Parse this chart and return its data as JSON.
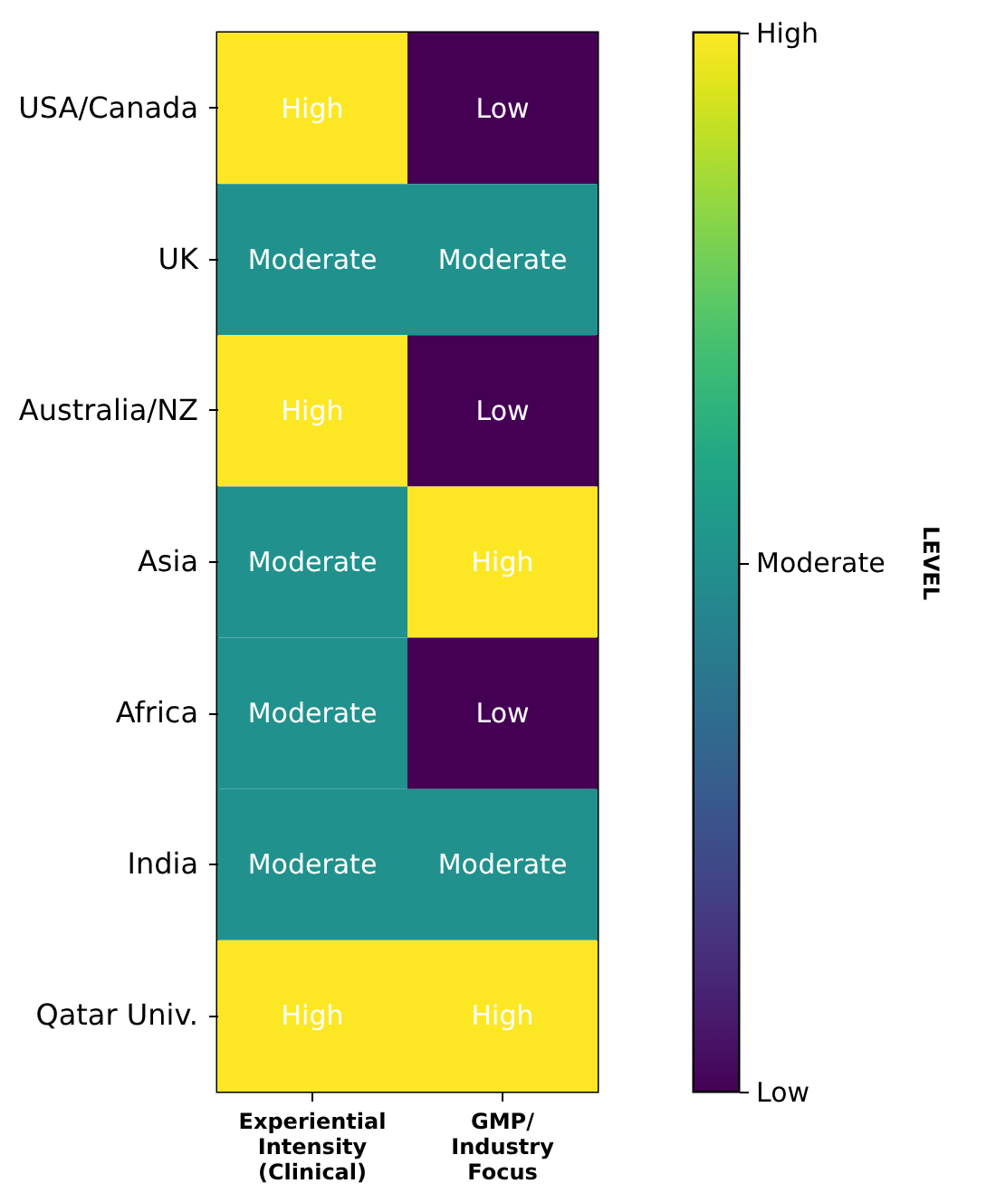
{
  "chart_data": {
    "type": "heatmap",
    "categories": [
      "Experiential Intensity (Clinical)",
      "GMP/ Industry Focus"
    ],
    "y_categories": [
      "USA/Canada",
      "UK",
      "Australia/NZ",
      "Asia",
      "Africa",
      "India",
      "Qatar Univ."
    ],
    "cells": [
      [
        2,
        0
      ],
      [
        1,
        1
      ],
      [
        2,
        0
      ],
      [
        1,
        2
      ],
      [
        1,
        0
      ],
      [
        1,
        1
      ],
      [
        2,
        2
      ]
    ],
    "cell_labels": [
      [
        "High",
        "Low"
      ],
      [
        "Moderate",
        "Moderate"
      ],
      [
        "High",
        "Low"
      ],
      [
        "Moderate",
        "High"
      ],
      [
        "Moderate",
        "Low"
      ],
      [
        "Moderate",
        "Moderate"
      ],
      [
        "High",
        "High"
      ]
    ],
    "clim": [
      0,
      2
    ],
    "cticks": [
      {
        "value": 0,
        "label": "Low"
      },
      {
        "value": 1,
        "label": "Moderate"
      },
      {
        "value": 2,
        "label": "High"
      }
    ],
    "clabel": "LEVEL"
  }
}
